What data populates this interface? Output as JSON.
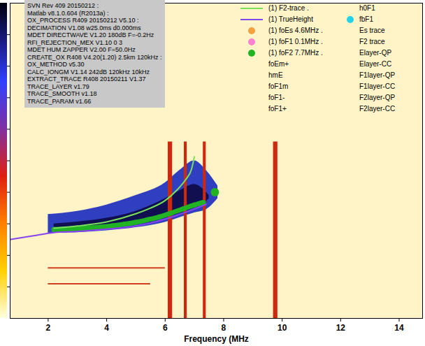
{
  "chart_data": {
    "type": "ionogram",
    "xlabel": "Frequency (MHz",
    "xlim": [
      0.7,
      14.8
    ],
    "xticks": [
      2,
      4,
      6,
      8,
      10,
      12,
      14
    ],
    "ylim": [
      0,
      1000
    ],
    "yticks": [
      100,
      200,
      300,
      400,
      500,
      600,
      700,
      800,
      900
    ],
    "tick_labels": "x",
    "legend": "top right",
    "info_box": [
      "SVN Rev 409 20150212 :",
      "Matlab v8.1.0.604 (R2013a) :",
      "OX_PROCESS R409 20150212 V5.10 :",
      "DECIMATION V1.08 w25.0ms d0.000ms",
      "MDET DIRECTWAVE V1.20 180dB F=-0.2Hz",
      "RFI_REJECTION_MEX V1.10 0 3",
      "MDET HUM ZAPPER V2.00 F=50.0Hz",
      "CREATE_OX R408 V4.20(1.20) 2.5km 120kHz :",
      "OX_METHOD v5.30",
      "CALC_IONGM V1.14 242dB 120kHz 10kHz",
      "EXTRACT_TRACE R408 20150211 V1.37",
      "TRACE_LAYER v1.79",
      "TRACE_SMOOTH v1.18",
      "TRACE_PARAM v1.66"
    ],
    "echo": [
      {
        "color": "#2f3fbf",
        "x": [
          2,
          3,
          4,
          5,
          6,
          6.5,
          7,
          7.4,
          7.8
        ],
        "y1": [
          270,
          272,
          278,
          288,
          305,
          320,
          335,
          345,
          380
        ],
        "y2": [
          330,
          340,
          360,
          390,
          430,
          470,
          500,
          470,
          420
        ]
      },
      {
        "color": "#101050",
        "x": [
          2.2,
          3,
          4,
          5,
          5.5,
          6,
          6.5,
          7,
          7.3,
          7.5
        ],
        "y1": [
          278,
          281,
          288,
          298,
          305,
          318,
          333,
          350,
          362,
          380
        ],
        "y2": [
          300,
          306,
          318,
          340,
          358,
          380,
          405,
          425,
          410,
          390
        ]
      }
    ],
    "bands": {
      "color": "#cc2a10",
      "x1": [
        6.1,
        6.65,
        7.3,
        9.7
      ],
      "x2": [
        6.25,
        6.75,
        7.4,
        9.85
      ],
      "y1": [
        0,
        0,
        0,
        0
      ],
      "y2": [
        560,
        560,
        560,
        560
      ]
    },
    "echo_lines": {
      "color": "#d04020",
      "x1": [
        2,
        2
      ],
      "x2": [
        6,
        5.5
      ],
      "values": [
        160,
        110
      ]
    },
    "trace": {
      "color": "#22b322",
      "x": [
        2.2,
        2.6,
        3,
        3.4,
        3.8,
        4.2,
        4.6,
        5,
        5.4,
        5.8,
        6.2,
        6.6,
        7.0,
        7.3
      ],
      "values": [
        282,
        283,
        285,
        287,
        290,
        294,
        299,
        305,
        313,
        322,
        334,
        347,
        360,
        368
      ]
    },
    "series": [
      {
        "name": "(1) F2-trace .",
        "type": "line",
        "line_style": "solid",
        "color": "#7be05a",
        "x": [
          2.2,
          3,
          4,
          5,
          5.5,
          6,
          6.4,
          6.7,
          6.9,
          7.0
        ],
        "values": [
          286,
          293,
          306,
          332,
          350,
          374,
          407,
          440,
          473,
          513
        ]
      },
      {
        "name": "(1) TrueHeight",
        "type": "line",
        "line_style": "solid",
        "color": "#8844ee",
        "x": [
          0.7,
          1.5,
          2.2,
          3,
          4,
          5,
          6,
          6.8,
          7.4
        ],
        "values": [
          250,
          262,
          272,
          276,
          283,
          293,
          315,
          340,
          362
        ]
      },
      {
        "name": "(1) foEs 4.6MHz .",
        "type": "scatter",
        "marker": "circle",
        "color": "#f4a040"
      },
      {
        "name": "(1) foF1 0.1MHz .",
        "type": "scatter",
        "marker": "circle",
        "color": "#ff80d0"
      },
      {
        "name": "(1) foF2 7.7MHz .",
        "type": "scatter",
        "marker": "circle",
        "color": "#22b322",
        "x": [
          7.7
        ],
        "values": [
          400
        ]
      },
      {
        "name": "foEm+"
      },
      {
        "name": "hmE"
      },
      {
        "name": "foF1m"
      },
      {
        "name": "foF1-"
      },
      {
        "name": "foF1+"
      },
      {
        "name": "h0F1"
      },
      {
        "name": "fbF1",
        "type": "scatter",
        "marker": "circle",
        "color": "#22d3e8"
      },
      {
        "name": "Es trace"
      },
      {
        "name": "F2 trace"
      },
      {
        "name": "Elayer-QP"
      },
      {
        "name": "Elayer-CC"
      },
      {
        "name": "F1layer-QP"
      },
      {
        "name": "F1layer-CC"
      },
      {
        "name": "F2layer-QP"
      },
      {
        "name": "F2layer-CC"
      }
    ]
  }
}
